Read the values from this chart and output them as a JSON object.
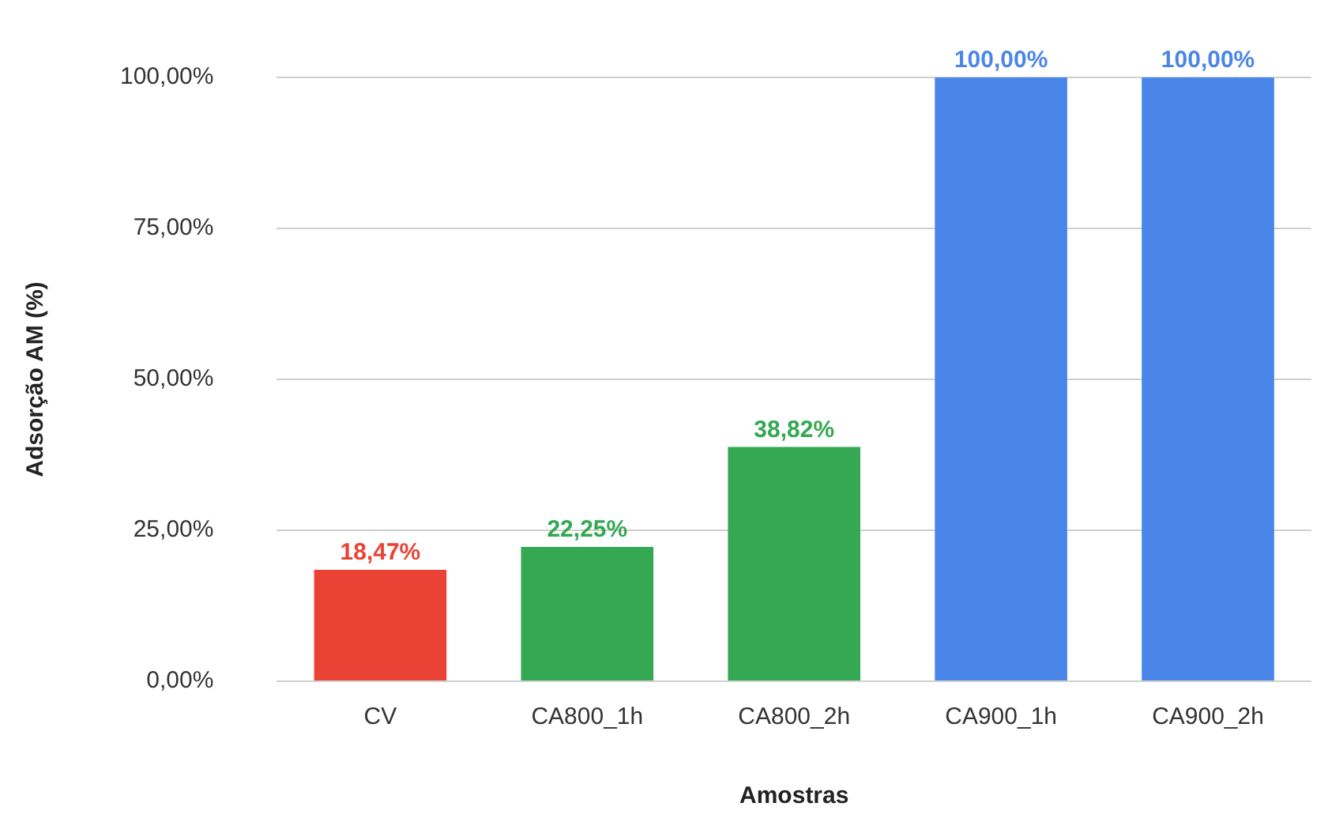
{
  "chart_data": {
    "type": "bar",
    "xlabel": "Amostras",
    "ylabel": "Adsorção AM (%)",
    "categories": [
      "CV",
      "CA800_1h",
      "CA800_2h",
      "CA900_1h",
      "CA900_2h"
    ],
    "values": [
      18.47,
      22.25,
      38.82,
      100,
      100
    ],
    "colors": [
      "#ea4335",
      "#34a853",
      "#34a853",
      "#4a86e8",
      "#4a86e8"
    ],
    "value_labels": [
      "18,47%",
      "22,25%",
      "38,82%",
      "100,00%",
      "100,00%"
    ],
    "ylim": [
      0,
      100
    ],
    "yticks": [
      {
        "value": 0,
        "label": "0,00%"
      },
      {
        "value": 25,
        "label": "25,00%"
      },
      {
        "value": 50,
        "label": "50,00%"
      },
      {
        "value": 75,
        "label": "75,00%"
      },
      {
        "value": 100,
        "label": "100,00%"
      }
    ],
    "grid": "y",
    "legend": false
  }
}
